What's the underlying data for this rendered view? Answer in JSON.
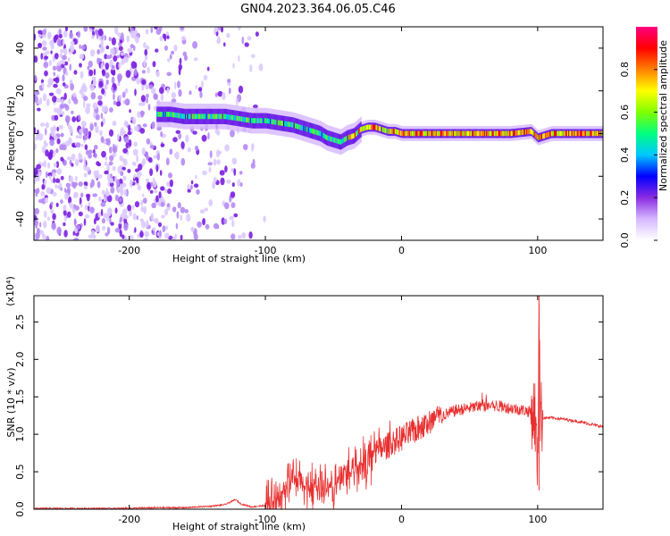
{
  "title": "GN04.2023.364.06.05.C46",
  "chart_data": [
    {
      "type": "heatmap",
      "xlabel": "Height of straight line (km)",
      "ylabel": "Frequency (Hz)",
      "xlim": [
        -270,
        148
      ],
      "ylim": [
        -50,
        50
      ],
      "xticks": [
        -200,
        -100,
        0,
        100
      ],
      "yticks": [
        -40,
        -20,
        0,
        20,
        40
      ],
      "colorbar": {
        "label": "Normalized spectral amplitude",
        "range": [
          0,
          1
        ],
        "ticks": [
          "0.0",
          "0.2",
          "0.4",
          "0.6",
          "0.8"
        ],
        "colormap": [
          "#ffffff",
          "#d6b8ff",
          "#8a2be2",
          "#0000ff",
          "#00c8ff",
          "#00ff80",
          "#80ff00",
          "#ffff00",
          "#ff8000",
          "#ff0000",
          "#ff0080"
        ]
      },
      "ridge": {
        "x": [
          -180,
          -170,
          -160,
          -150,
          -140,
          -130,
          -120,
          -110,
          -100,
          -90,
          -80,
          -70,
          -60,
          -55,
          -50,
          -45,
          -40,
          -35,
          -30,
          -25,
          -20,
          -15,
          -10,
          -5,
          0,
          20,
          40,
          60,
          80,
          95,
          100,
          110,
          130,
          148
        ],
        "y": [
          9,
          9,
          8,
          8,
          8,
          8,
          7,
          6,
          6,
          5,
          4,
          2,
          0,
          -2,
          -3,
          -4,
          -2,
          -1,
          2,
          3,
          3,
          2,
          1,
          1,
          0,
          0,
          0,
          0,
          0,
          1,
          -2,
          0,
          0,
          0
        ]
      }
    },
    {
      "type": "line",
      "xlabel": "Height of straight line (km)",
      "ylabel": "SNR (10 * v/v)",
      "multiplier": "(x10⁴)",
      "xlim": [
        -270,
        148
      ],
      "ylim": [
        0,
        2.85
      ],
      "xticks": [
        -200,
        -100,
        0,
        100
      ],
      "yticks": [
        0.0,
        0.5,
        1.0,
        1.5,
        2.0,
        2.5
      ],
      "color": "#e83030",
      "series": [
        {
          "x": [
            -270,
            -240,
            -210,
            -180,
            -160,
            -140,
            -130,
            -125,
            -122,
            -118,
            -110,
            -100,
            -95,
            -90,
            -85,
            -80,
            -75,
            -70,
            -65,
            -60,
            -55,
            -50,
            -45,
            -40,
            -35,
            -30,
            -25,
            -20,
            -15,
            -10,
            -5,
            0,
            10,
            20,
            30,
            40,
            50,
            60,
            70,
            80,
            90,
            95,
            98,
            100,
            101,
            102,
            104,
            110,
            120,
            130,
            140,
            148
          ],
          "y": [
            0.01,
            0.01,
            0.01,
            0.02,
            0.02,
            0.04,
            0.06,
            0.1,
            0.13,
            0.07,
            0.03,
            0.05,
            0.12,
            0.2,
            0.3,
            0.38,
            0.35,
            0.3,
            0.35,
            0.3,
            0.25,
            0.3,
            0.4,
            0.5,
            0.55,
            0.6,
            0.65,
            0.75,
            0.8,
            0.85,
            0.9,
            0.95,
            1.05,
            1.15,
            1.25,
            1.32,
            1.35,
            1.38,
            1.38,
            1.35,
            1.32,
            1.3,
            1.28,
            0.5,
            2.85,
            1.25,
            1.22,
            1.22,
            1.2,
            1.17,
            1.13,
            1.1
          ]
        }
      ]
    }
  ]
}
